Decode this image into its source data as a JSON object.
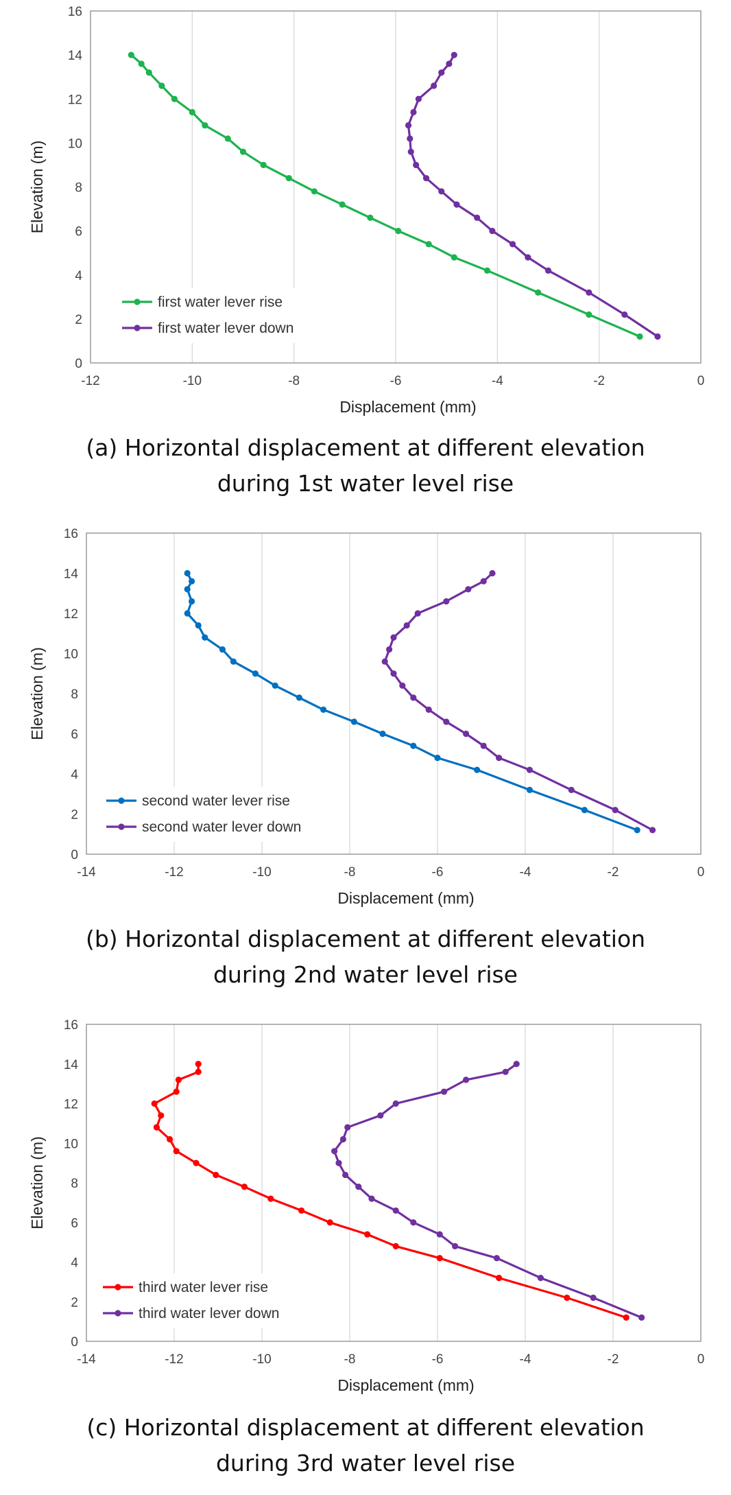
{
  "chart_data": [
    {
      "type": "line",
      "xlabel": "Displacement (mm)",
      "ylabel": "Elevation (m)",
      "xlim": [
        -12,
        0
      ],
      "ylim": [
        0,
        16
      ],
      "xticks": [
        -12,
        -10,
        -8,
        -6,
        -4,
        -2,
        0
      ],
      "yticks": [
        0,
        2,
        4,
        6,
        8,
        10,
        12,
        14,
        16
      ],
      "grid": "vertical",
      "legend": "bottom-left",
      "caption": [
        "(a) Horizontal displacement at different elevation",
        "during 1st water level rise"
      ],
      "series": [
        {
          "name": "first water lever rise",
          "color": "#1db34f",
          "x": [
            -11.2,
            -11.0,
            -10.85,
            -10.6,
            -10.35,
            -10.0,
            -9.75,
            -9.3,
            -9.0,
            -8.6,
            -8.1,
            -7.6,
            -7.05,
            -6.5,
            -5.95,
            -5.35,
            -4.85,
            -4.2,
            -3.2,
            -2.2,
            -1.2
          ],
          "y": [
            14.0,
            13.6,
            13.2,
            12.6,
            12.0,
            11.4,
            10.8,
            10.2,
            9.6,
            9.0,
            8.4,
            7.8,
            7.2,
            6.6,
            6.0,
            5.4,
            4.8,
            4.2,
            3.2,
            2.2,
            1.2
          ]
        },
        {
          "name": "first water lever down",
          "color": "#7030a0",
          "x": [
            -4.85,
            -4.95,
            -5.1,
            -5.25,
            -5.55,
            -5.65,
            -5.75,
            -5.72,
            -5.7,
            -5.6,
            -5.4,
            -5.1,
            -4.8,
            -4.4,
            -4.1,
            -3.7,
            -3.4,
            -3.0,
            -2.2,
            -1.5,
            -0.85
          ],
          "y": [
            14.0,
            13.6,
            13.2,
            12.6,
            12.0,
            11.4,
            10.8,
            10.2,
            9.6,
            9.0,
            8.4,
            7.8,
            7.2,
            6.6,
            6.0,
            5.4,
            4.8,
            4.2,
            3.2,
            2.2,
            1.2
          ]
        }
      ]
    },
    {
      "type": "line",
      "xlabel": "Displacement (mm)",
      "ylabel": "Elevation (m)",
      "xlim": [
        -14,
        0
      ],
      "ylim": [
        0,
        16
      ],
      "xticks": [
        -14,
        -12,
        -10,
        -8,
        -6,
        -4,
        -2,
        0
      ],
      "yticks": [
        0,
        2,
        4,
        6,
        8,
        10,
        12,
        14,
        16
      ],
      "grid": "vertical",
      "legend": "bottom-left",
      "caption": [
        "(b) Horizontal displacement at different elevation",
        "during 2nd water level rise"
      ],
      "series": [
        {
          "name": "second water lever rise",
          "color": "#0070c0",
          "x": [
            -11.7,
            -11.6,
            -11.7,
            -11.6,
            -11.7,
            -11.45,
            -11.3,
            -10.9,
            -10.65,
            -10.15,
            -9.7,
            -9.15,
            -8.6,
            -7.9,
            -7.25,
            -6.55,
            -6.0,
            -5.1,
            -3.9,
            -2.65,
            -1.45
          ],
          "y": [
            14.0,
            13.6,
            13.2,
            12.6,
            12.0,
            11.4,
            10.8,
            10.2,
            9.6,
            9.0,
            8.4,
            7.8,
            7.2,
            6.6,
            6.0,
            5.4,
            4.8,
            4.2,
            3.2,
            2.2,
            1.2
          ]
        },
        {
          "name": "second water lever down",
          "color": "#7030a0",
          "x": [
            -4.75,
            -4.95,
            -5.3,
            -5.8,
            -6.45,
            -6.7,
            -7.0,
            -7.1,
            -7.2,
            -7.0,
            -6.8,
            -6.55,
            -6.2,
            -5.8,
            -5.35,
            -4.95,
            -4.6,
            -3.9,
            -2.95,
            -1.95,
            -1.1
          ],
          "y": [
            14.0,
            13.6,
            13.2,
            12.6,
            12.0,
            11.4,
            10.8,
            10.2,
            9.6,
            9.0,
            8.4,
            7.8,
            7.2,
            6.6,
            6.0,
            5.4,
            4.8,
            4.2,
            3.2,
            2.2,
            1.2
          ]
        }
      ]
    },
    {
      "type": "line",
      "xlabel": "Displacement (mm)",
      "ylabel": "Elevation (m)",
      "xlim": [
        -14,
        0
      ],
      "ylim": [
        0,
        16
      ],
      "xticks": [
        -14,
        -12,
        -10,
        -8,
        -6,
        -4,
        -2,
        0
      ],
      "yticks": [
        0,
        2,
        4,
        6,
        8,
        10,
        12,
        14,
        16
      ],
      "grid": "vertical",
      "legend": "bottom-left",
      "caption": [
        "(c) Horizontal displacement at different elevation",
        "during 3rd water level rise"
      ],
      "series": [
        {
          "name": "third water lever rise",
          "color": "#ff0000",
          "x": [
            -11.45,
            -11.45,
            -11.9,
            -11.95,
            -12.45,
            -12.3,
            -12.4,
            -12.1,
            -11.95,
            -11.5,
            -11.05,
            -10.4,
            -9.8,
            -9.1,
            -8.45,
            -7.6,
            -6.95,
            -5.95,
            -4.6,
            -3.05,
            -1.7
          ],
          "y": [
            14.0,
            13.6,
            13.2,
            12.6,
            12.0,
            11.4,
            10.8,
            10.2,
            9.6,
            9.0,
            8.4,
            7.8,
            7.2,
            6.6,
            6.0,
            5.4,
            4.8,
            4.2,
            3.2,
            2.2,
            1.2
          ]
        },
        {
          "name": "third water lever down",
          "color": "#7030a0",
          "x": [
            -4.2,
            -4.45,
            -5.35,
            -5.85,
            -6.95,
            -7.3,
            -8.05,
            -8.15,
            -8.35,
            -8.25,
            -8.1,
            -7.8,
            -7.5,
            -6.95,
            -6.55,
            -5.95,
            -5.6,
            -4.65,
            -3.65,
            -2.45,
            -1.35
          ],
          "y": [
            14.0,
            13.6,
            13.2,
            12.6,
            12.0,
            11.4,
            10.8,
            10.2,
            9.6,
            9.0,
            8.4,
            7.8,
            7.2,
            6.6,
            6.0,
            5.4,
            4.8,
            4.2,
            3.2,
            2.2,
            1.2
          ]
        }
      ]
    }
  ]
}
